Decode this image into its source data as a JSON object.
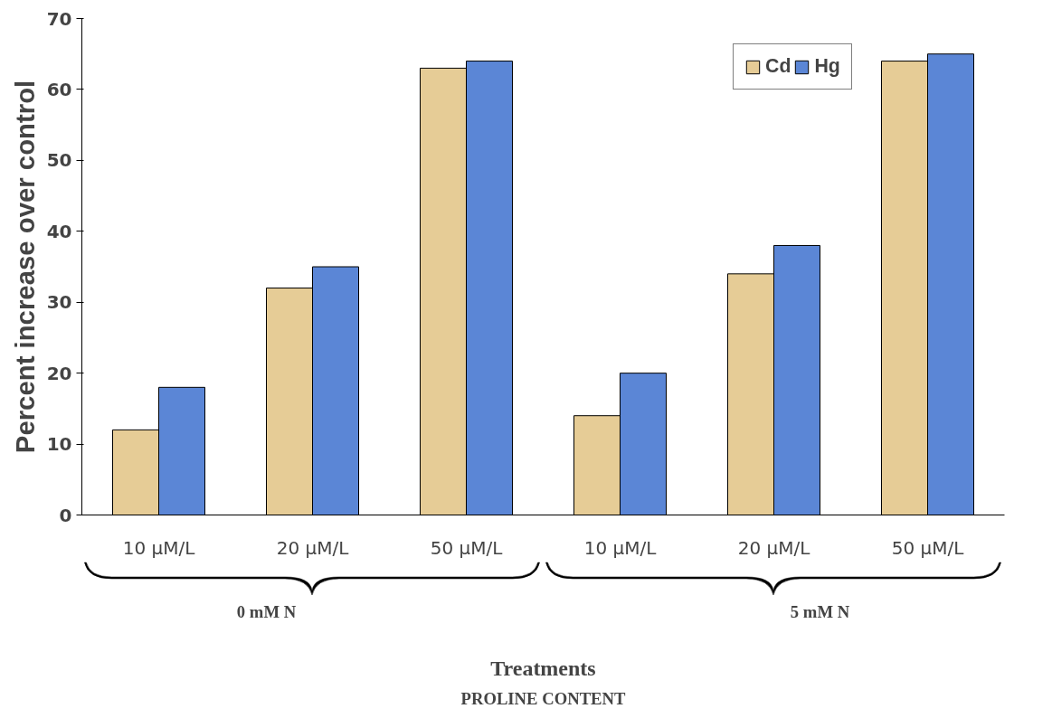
{
  "chart_data": {
    "type": "bar",
    "title": "PROLINE CONTENT",
    "xlabel": "Treatments",
    "ylabel": "Percent increase over control",
    "categories": [
      "10 μM/L",
      "20 μM/L",
      "50 μM/L",
      "10 μM/L",
      "20 μM/L",
      "50 μM/L"
    ],
    "series": [
      {
        "name": "Cd",
        "color": "#e6cc96",
        "values": [
          12,
          32,
          63,
          14,
          34,
          64
        ]
      },
      {
        "name": "Hg",
        "color": "#5b86d6",
        "values": [
          18,
          35,
          64,
          20,
          38,
          65
        ]
      }
    ],
    "ylim": [
      0,
      70
    ],
    "yticks": [
      0,
      10,
      20,
      30,
      40,
      50,
      60,
      70
    ],
    "grid": false,
    "legend": "top right",
    "annotations": [
      "0 mM N",
      "5 mM N"
    ]
  }
}
